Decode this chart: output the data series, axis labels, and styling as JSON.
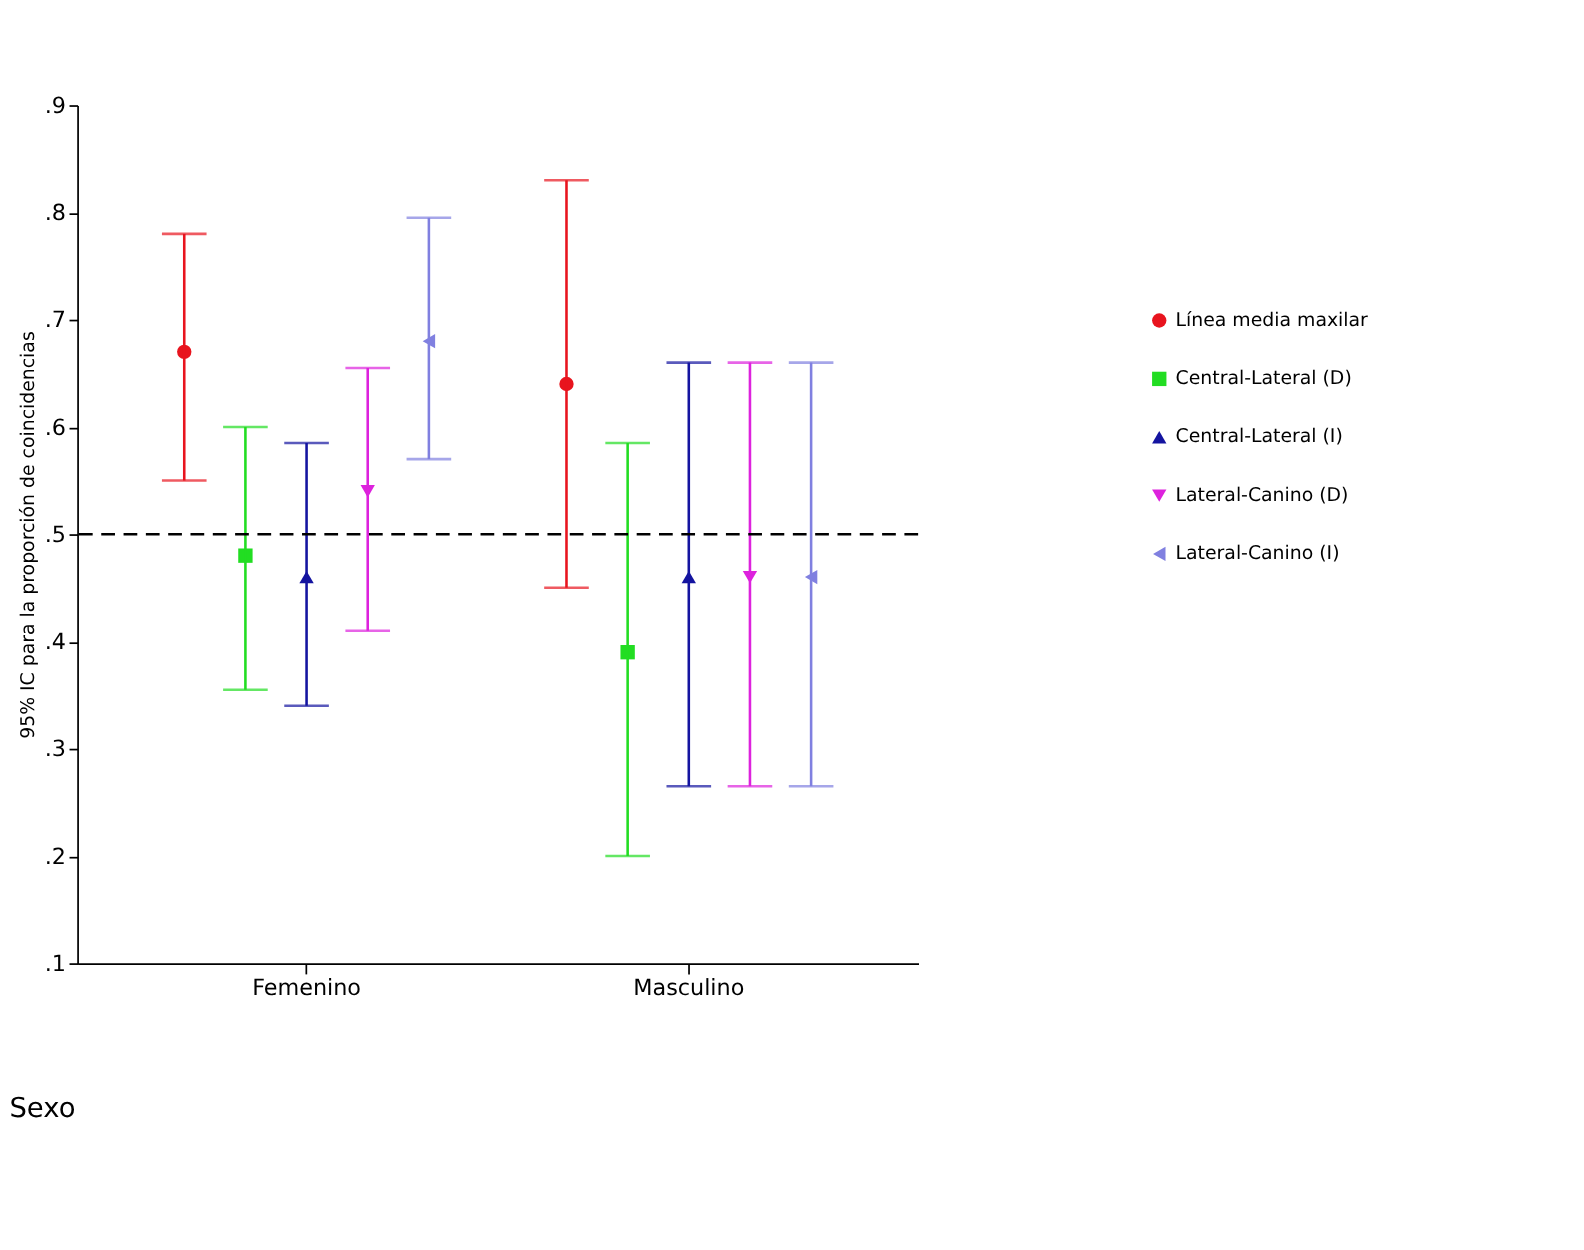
{
  "chart_data": {
    "type": "scatter",
    "xlabel": "Sexo",
    "ylabel": "95% IC para la proporción de coincidencias",
    "categories": [
      "Femenino",
      "Masculino"
    ],
    "series": [
      {
        "name": "Línea media maxilar",
        "color": "#e8141e",
        "marker": "circle",
        "values": [
          0.67,
          0.64
        ],
        "errors": [
          [
            0.55,
            0.78
          ],
          [
            0.45,
            0.83
          ]
        ]
      },
      {
        "name": "Central-Lateral (D)",
        "color": "#22dd22",
        "marker": "square",
        "values": [
          0.48,
          0.39
        ],
        "errors": [
          [
            0.355,
            0.6
          ],
          [
            0.2,
            0.585
          ]
        ]
      },
      {
        "name": "Central-Lateral (I)",
        "color": "#1414a0",
        "marker": "triangle-up",
        "values": [
          0.46,
          0.46
        ],
        "errors": [
          [
            0.34,
            0.585
          ],
          [
            0.265,
            0.66
          ]
        ]
      },
      {
        "name": "Lateral-Canino (D)",
        "color": "#dd22dd",
        "marker": "triangle-down",
        "values": [
          0.54,
          0.46
        ],
        "errors": [
          [
            0.41,
            0.655
          ],
          [
            0.265,
            0.66
          ]
        ]
      },
      {
        "name": "Lateral-Canino (I)",
        "color": "#8080e0",
        "marker": "triangle-left",
        "values": [
          0.68,
          0.46
        ],
        "errors": [
          [
            0.57,
            0.795
          ],
          [
            0.265,
            0.66
          ]
        ]
      }
    ],
    "ylim": [
      0.1,
      0.9
    ],
    "yticks": [
      {
        "value": 0.1,
        "label": ".1"
      },
      {
        "value": 0.2,
        "label": ".2"
      },
      {
        "value": 0.3,
        "label": ".3"
      },
      {
        "value": 0.4,
        "label": ".4"
      },
      {
        "value": 0.5,
        "label": ".5"
      },
      {
        "value": 0.6,
        "label": ".6"
      },
      {
        "value": 0.7,
        "label": ".7"
      },
      {
        "value": 0.8,
        "label": ".8"
      },
      {
        "value": 0.9,
        "label": ".9"
      }
    ],
    "ref_lines": [
      {
        "axis": "y",
        "value": 0.5,
        "line_style": "dashed",
        "color": "#000000"
      }
    ],
    "grid": false,
    "legend": "right"
  }
}
